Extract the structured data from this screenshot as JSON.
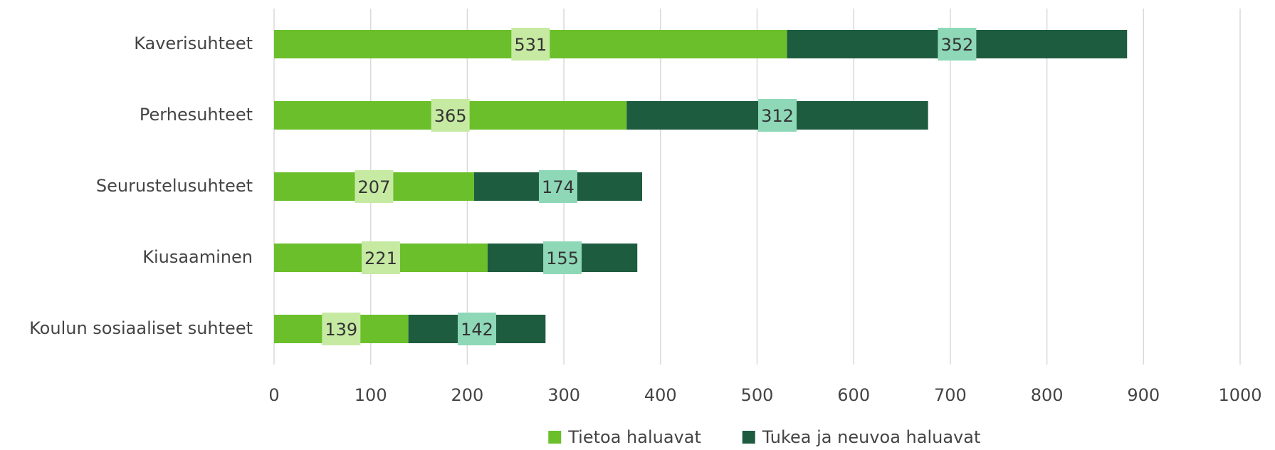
{
  "chart_data": {
    "type": "stacked-bar-horizontal",
    "categories": [
      "Kaverisuhteet",
      "Perhesuhteet",
      "Seurustelusuhteet",
      "Kiusaaminen",
      "Koulun sosiaaliset suhteet"
    ],
    "series": [
      {
        "name": "Tietoa haluavat",
        "color": "#6abf2a",
        "label_background": "#c6eaa2",
        "values": [
          531,
          365,
          207,
          221,
          139
        ]
      },
      {
        "name": "Tukea ja neuvoa haluavat",
        "color": "#1e5c40",
        "label_background": "#8ed8b8",
        "values": [
          352,
          312,
          174,
          155,
          142
        ]
      }
    ],
    "xlim": [
      0,
      1000
    ],
    "xticks": [
      0,
      100,
      200,
      300,
      400,
      500,
      600,
      700,
      800,
      900,
      1000
    ],
    "grid": true,
    "legend": "bottom"
  }
}
